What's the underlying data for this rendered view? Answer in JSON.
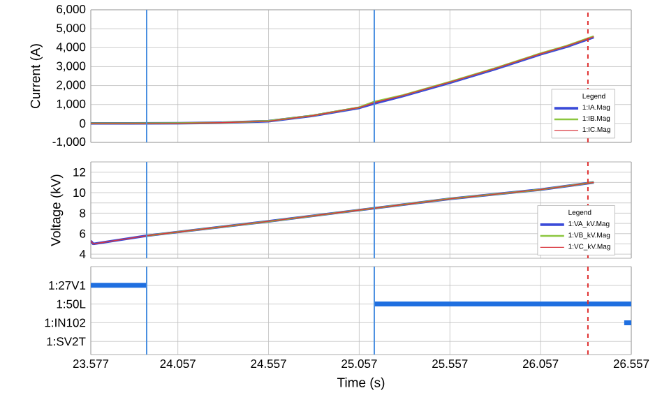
{
  "chart_data": [
    {
      "type": "line",
      "ylabel": "Current (A)",
      "legend_title": "Legend",
      "legend": "bottom right",
      "grid": true,
      "tick_labels": "y",
      "xlim": [
        23.577,
        26.557
      ],
      "xticks": [
        23.577,
        24.057,
        24.557,
        25.057,
        25.557,
        26.057,
        26.557
      ],
      "ylim": [
        -1000,
        6000
      ],
      "yticks": [
        {
          "value": -1000,
          "label": "-1,000"
        },
        0,
        {
          "value": 1000,
          "label": "1,000"
        },
        {
          "value": 2000,
          "label": "2,000"
        },
        {
          "value": 3000,
          "label": "3,000"
        },
        {
          "value": 4000,
          "label": "4,000"
        },
        {
          "value": 5000,
          "label": "5,000"
        },
        {
          "value": 6000,
          "label": "6,000"
        }
      ],
      "x": [
        23.577,
        23.8,
        24.057,
        24.3,
        24.557,
        24.8,
        25.057,
        25.14,
        25.3,
        25.557,
        25.8,
        26.057,
        26.2,
        26.35
      ],
      "series": [
        {
          "name": "1:IA.Mag",
          "color": "#3b4bd8",
          "values": [
            0,
            0,
            10,
            40,
            120,
            400,
            820,
            1050,
            1450,
            2150,
            2850,
            3650,
            4050,
            4550
          ]
        },
        {
          "name": "1:IB.Mag",
          "color": "#8cc63f",
          "values": [
            0,
            0,
            10,
            40,
            130,
            420,
            850,
            1150,
            1500,
            2200,
            2900,
            3700,
            4100,
            4600
          ]
        },
        {
          "name": "1:IC.Mag",
          "color": "#d9363e",
          "values": [
            0,
            0,
            10,
            40,
            120,
            410,
            840,
            1100,
            1480,
            2180,
            2880,
            3680,
            4080,
            4580
          ]
        }
      ],
      "ref_lines": [
        {
          "axis": "x",
          "value": 23.885,
          "color": "#4a8fe0"
        },
        {
          "axis": "x",
          "value": 25.14,
          "color": "#4a8fe0"
        },
        {
          "axis": "x",
          "value": 26.318,
          "color": "#e03030",
          "line_style": "dashed"
        }
      ]
    },
    {
      "type": "line",
      "ylabel": "Voltage (kV)",
      "legend_title": "Legend",
      "legend": "bottom right",
      "grid": true,
      "tick_labels": "y",
      "xlim": [
        23.577,
        26.557
      ],
      "xticks": [
        23.577,
        24.057,
        24.557,
        25.057,
        25.557,
        26.057,
        26.557
      ],
      "ylim": [
        3.6,
        13
      ],
      "yticks": [
        4,
        {
          "value": 5,
          "label": null
        },
        6,
        {
          "value": 7,
          "label": null
        },
        8,
        {
          "value": 9,
          "label": null
        },
        10,
        {
          "value": 11,
          "label": null
        },
        12
      ],
      "x": [
        23.577,
        23.59,
        23.885,
        24.557,
        25.057,
        25.557,
        26.057,
        26.35
      ],
      "series": [
        {
          "name": "1:VA_kV.Mag",
          "color": "#3b4bd8",
          "values": [
            5.3,
            5.0,
            5.8,
            7.2,
            8.3,
            9.4,
            10.3,
            11.0
          ]
        },
        {
          "name": "1:VB_kV.Mag",
          "color": "#8cc63f",
          "values": [
            null,
            null,
            5.8,
            7.2,
            8.3,
            9.4,
            10.3,
            11.0
          ]
        },
        {
          "name": "1:VC_kV.Mag",
          "color": "#d9363e",
          "values": [
            5.3,
            5.0,
            5.8,
            7.2,
            8.3,
            9.4,
            10.3,
            11.0
          ]
        }
      ],
      "ref_lines": [
        {
          "axis": "x",
          "value": 23.885,
          "color": "#4a8fe0"
        },
        {
          "axis": "x",
          "value": 25.14,
          "color": "#4a8fe0"
        },
        {
          "axis": "x",
          "value": 26.318,
          "color": "#e03030",
          "line_style": "dashed"
        }
      ]
    },
    {
      "type": "bar",
      "orientation": "horizontal",
      "xlabel": "Time (s)",
      "grid": true,
      "xlim": [
        23.577,
        26.557
      ],
      "xticks": [
        23.577,
        24.057,
        24.557,
        25.057,
        25.557,
        26.057,
        26.557
      ],
      "categories": [
        "1:27V1",
        "1:50L",
        "1:IN102",
        "1:SV2T"
      ],
      "base": [
        23.577,
        25.14,
        26.518,
        null
      ],
      "values": [
        0.308,
        1.417,
        0.039,
        null
      ],
      "color": "#1f6fe0",
      "ref_lines": [
        {
          "axis": "x",
          "value": 23.885,
          "color": "#4a8fe0"
        },
        {
          "axis": "x",
          "value": 25.14,
          "color": "#4a8fe0"
        },
        {
          "axis": "x",
          "value": 26.318,
          "color": "#e03030",
          "line_style": "dashed"
        }
      ]
    }
  ]
}
